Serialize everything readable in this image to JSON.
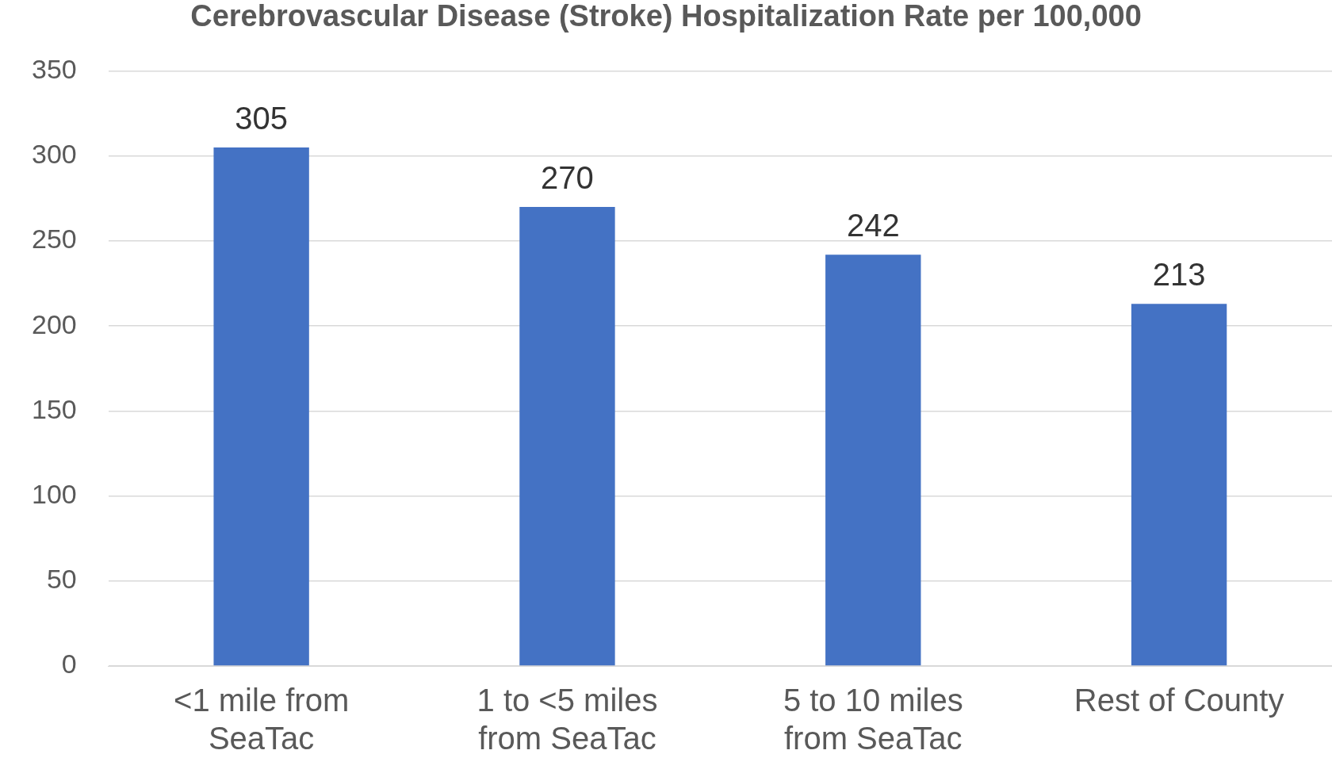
{
  "chart_data": {
    "type": "bar",
    "title": "Cerebrovascular Disease (Stroke) Hospitalization Rate per 100,000",
    "categories": [
      "<1 mile from SeaTac",
      "1 to <5 miles from SeaTac",
      "5 to 10 miles from SeaTac",
      "Rest of County"
    ],
    "values": [
      305,
      270,
      242,
      213
    ],
    "color": "#4472c4",
    "ylim": [
      0,
      350
    ],
    "yticks": [
      0,
      50,
      100,
      150,
      200,
      250,
      300,
      350
    ],
    "grid": "y",
    "data_labels": true
  }
}
